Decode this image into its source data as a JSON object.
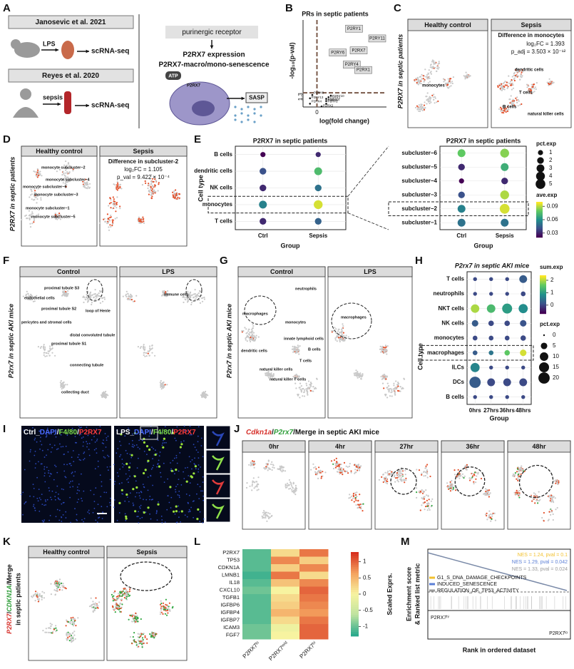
{
  "A": {
    "letter": "A",
    "study1": "Janosevic et al. 2021",
    "study2": "Reyes et al. 2020",
    "treat1": "LPS",
    "treat2": "sepsis",
    "out1": "scRNA-seq",
    "out2": "scRNA-seq",
    "receptor": "purinergic receptor",
    "line1": "P2RX7 expression",
    "line2": "P2RX7-macro/mono-senescence",
    "atp": "ATP",
    "cell": "P2RX7",
    "sasp": "SASP"
  },
  "B": {
    "letter": "B",
    "title": "PRs in septic patients",
    "ylabel": "-log₁₀(p-val)",
    "xlabel": "log(fold change)",
    "xlim": [
      -0.6,
      3
    ],
    "ylim": [
      0,
      8
    ],
    "xticks": [
      0
    ],
    "yticks": [
      1.3
    ],
    "points": [
      {
        "label": "P2RY1",
        "x": 1.6,
        "y": 7.2
      },
      {
        "label": "P2RY11",
        "x": 2.6,
        "y": 6.3
      },
      {
        "label": "P2RY6",
        "x": 0.9,
        "y": 5.0
      },
      {
        "label": "P2RX7",
        "x": 1.8,
        "y": 5.2
      },
      {
        "label": "P2RY4",
        "x": 1.5,
        "y": 3.9
      },
      {
        "label": "P2RX1",
        "x": 2.0,
        "y": 3.4
      },
      {
        "label": "P2RY8",
        "x": -0.2,
        "y": 1.1
      },
      {
        "label": "P2RY13",
        "x": -0.3,
        "y": 0.8
      },
      {
        "label": "P2RX3",
        "x": 0.5,
        "y": 0.9
      },
      {
        "label": "P2RX4",
        "x": -0.3,
        "y": 0.3
      },
      {
        "label": "P2RX5",
        "x": 0.4,
        "y": 0.55
      },
      {
        "label": "P2RY14",
        "x": 0.4,
        "y": 0.75
      },
      {
        "label": "P2RY2",
        "x": 0.4,
        "y": 0.3
      },
      {
        "label": "P2RX2",
        "x": 0.2,
        "y": 0.05
      },
      {
        "label": "P2RY10",
        "x": 0.6,
        "y": 1.05
      }
    ]
  },
  "C": {
    "letter": "C",
    "ylabel": "P2RX7 in septic patients",
    "left": "Healthy control",
    "right": "Sepsis",
    "diff": "Difference in monocytes",
    "fc": "log₂FC = 1.393",
    "p": "p_adj = 3.503 × 10⁻¹²",
    "clusters": [
      "monocytes",
      "dendritic cells",
      "T cells",
      "B cells",
      "natural killer cells"
    ]
  },
  "D": {
    "letter": "D",
    "ylabel": "P2RX7 in septic patients",
    "left": "Healthy control",
    "right": "Sepsis",
    "diff": "Difference in subcluster-2",
    "fc": "log₂FC = 1.105",
    "p": "p_val = 9.422 × 10⁻⁴",
    "clusters": [
      "monocyte subcluster−2",
      "monocyte subcluster−4",
      "monocyte subcluster−6",
      "monocyte subcluster−3",
      "monocyte subcluster−1",
      "monocyte subcluster−5"
    ]
  },
  "E": {
    "letter": "E",
    "left": {
      "title": "P2RX7 in septic patients",
      "ylabel": "Cell type",
      "xlabel": "Group",
      "groups": [
        "Ctrl",
        "Sepsis"
      ],
      "rows": [
        "B cells",
        "dendritic cells",
        "NK cells",
        "monocytes",
        "T cells"
      ],
      "pct": [
        [
          1,
          1
        ],
        [
          2,
          3
        ],
        [
          2,
          2
        ],
        [
          3,
          4
        ],
        [
          2,
          2
        ]
      ],
      "ave": [
        [
          0.02,
          0.03
        ],
        [
          0.04,
          0.075
        ],
        [
          0.03,
          0.05
        ],
        [
          0.055,
          0.095
        ],
        [
          0.03,
          0.045
        ]
      ]
    },
    "right": {
      "title": "P2RX7 in septic patients",
      "xlabel": "Group",
      "groups": [
        "Ctrl",
        "Sepsis"
      ],
      "rows": [
        "subcluster−6",
        "subcluster−5",
        "subcluster−4",
        "subcluster−3",
        "subcluster−2",
        "subcluster−1"
      ],
      "pct": [
        [
          3,
          4
        ],
        [
          2,
          3
        ],
        [
          1,
          2
        ],
        [
          2,
          4
        ],
        [
          3,
          5
        ],
        [
          3,
          3
        ]
      ],
      "ave": [
        [
          0.08,
          0.085
        ],
        [
          0.03,
          0.07
        ],
        [
          0.02,
          0.03
        ],
        [
          0.04,
          0.09
        ],
        [
          0.055,
          0.095
        ],
        [
          0.05,
          0.05
        ]
      ]
    },
    "pct_title": "pct.exp",
    "pct_ticks": [
      1,
      2,
      3,
      4,
      5
    ],
    "ave_title": "ave.exp",
    "ave_ticks": [
      0.09,
      0.06,
      0.03
    ],
    "ave_lim": [
      0.02,
      0.1
    ]
  },
  "F": {
    "letter": "F",
    "ylabel": "P2rx7 in septic AKI mice",
    "left": "Control",
    "right": "LPS",
    "clusters": [
      "proximal tubule S3",
      "immune cells",
      "endothelial cells",
      "proximal tubule S2",
      "loop of Henle",
      "pericytes and stromal cells",
      "distal convoluted tubule",
      "proximal tubule S1",
      "connecting tubule",
      "collecting duct"
    ]
  },
  "G": {
    "letter": "G",
    "ylabel": "P2rx7 in septic AKI mice",
    "left": "Control",
    "right": "LPS",
    "clusters": [
      "neutrophils",
      "macrophages",
      "monocytes",
      "innate lymphoid cells",
      "B cells",
      "T cells",
      "dendritic cells",
      "natural killer cells",
      "natural killer T cells"
    ]
  },
  "H": {
    "letter": "H",
    "title": "P2rx7 in septic AKI mice",
    "ylabel": "Cell type",
    "xlabel": "Group",
    "groups": [
      "0hrs",
      "27hrs",
      "36hrs",
      "48hrs"
    ],
    "rows": [
      "T cells",
      "neutrophils",
      "NKT cells",
      "NK cells",
      "monocytes",
      "macrophages",
      "ILCs",
      "DCs",
      "B cells"
    ],
    "pct": [
      [
        1,
        1,
        1,
        8
      ],
      [
        1,
        1,
        1,
        2
      ],
      [
        10,
        10,
        15,
        12
      ],
      [
        5,
        3,
        3,
        5
      ],
      [
        2,
        2,
        2,
        3
      ],
      [
        2,
        2,
        3,
        5
      ],
      [
        12,
        1,
        1,
        1
      ],
      [
        20,
        8,
        8,
        8
      ],
      [
        1,
        1,
        1,
        1
      ]
    ],
    "sum": [
      [
        0,
        0,
        0,
        0.2
      ],
      [
        0,
        0,
        0,
        0
      ],
      [
        2.0,
        1.4,
        1.0,
        0.8
      ],
      [
        0.2,
        0,
        0,
        0.1
      ],
      [
        0,
        0,
        0,
        0
      ],
      [
        0.2,
        0.5,
        1.6,
        2.2
      ],
      [
        0.7,
        0,
        0,
        0
      ],
      [
        0.2,
        0,
        0,
        0
      ],
      [
        0,
        0,
        0,
        0
      ]
    ],
    "sum_title": "sum.exp",
    "sum_ticks": [
      2,
      1,
      0
    ],
    "sum_lim": [
      -0.7,
      2.4
    ],
    "pct_title": "pct.exp",
    "pct_ticks": [
      0,
      5,
      10,
      15,
      20
    ]
  },
  "I": {
    "letter": "I",
    "left": [
      "Ctrl_",
      "DAPI",
      "/",
      "F4/80",
      "/",
      "P2RX7"
    ],
    "right": [
      "LPS_",
      "DAPI",
      "/",
      "F4/80",
      "/",
      "P2RX7"
    ]
  },
  "J": {
    "letter": "J",
    "title": [
      "Cdkn1a",
      "/",
      "P2rx7",
      "/Merge in septic AKI mice"
    ],
    "times": [
      "0hr",
      "4hr",
      "27hr",
      "36hr",
      "48hr"
    ]
  },
  "K": {
    "letter": "K",
    "ylabel": [
      "P2RX7",
      "/",
      "CDKN1A",
      "/Merge"
    ],
    "ylabel2": "in septic patients",
    "left": "Healthy control",
    "right": "Sepsis"
  },
  "L": {
    "letter": "L",
    "genes": [
      "P2RX7",
      "TP53",
      "CDKN1A",
      "LMNB1",
      "IL18",
      "CXCL10",
      "TGFB1",
      "IGFBP6",
      "IGFBP4",
      "IGFBP7",
      "ICAM3",
      "FGF7"
    ],
    "columns": [
      "P2RX7ˡᵒ",
      "P2RX7ᵐⁱᵈ",
      "P2RX7ʰⁱ"
    ],
    "values": [
      [
        -1.1,
        0.2,
        0.9
      ],
      [
        -1.1,
        0.8,
        0.3
      ],
      [
        -1.1,
        0.3,
        0.8
      ],
      [
        -1.2,
        0.9,
        0.2
      ],
      [
        -1.1,
        0.4,
        0.8
      ],
      [
        -1.0,
        0.0,
        1.0
      ],
      [
        -1.1,
        0.2,
        0.9
      ],
      [
        -1.1,
        0.3,
        0.8
      ],
      [
        -1.1,
        0.5,
        0.7
      ],
      [
        -1.1,
        0.2,
        0.9
      ],
      [
        -1.0,
        -0.1,
        1.0
      ],
      [
        -1.0,
        0.0,
        1.0
      ]
    ],
    "scale_title": "Scaled Exprs.",
    "scale_lim": [
      -1.3,
      1.3
    ],
    "scale_ticks": [
      1,
      0.5,
      0,
      -0.5,
      -1
    ]
  },
  "M": {
    "letter": "M",
    "ylabel": [
      "Enrichment score",
      "& Ranked list metric"
    ],
    "xlabel": "Rank in ordered dataset",
    "nes": [
      "NES = 1.24, pval = 0.1",
      "NES = 1.29, pval = 0.042",
      "NES = 1.33, pval = 0.024"
    ],
    "sets": [
      {
        "name": "G1_S_DNA_DAMAGE_CHECKPOINTS",
        "color": "#f2c12e"
      },
      {
        "name": "INDUCED_SENESCENCE",
        "color": "#5b7fd6"
      },
      {
        "name": "REGULATION_OF_TP53_ACTIVITY",
        "color": "#9a9a9a"
      }
    ],
    "hi": "P2RX7ʰⁱ",
    "lo": "P2RX7ˡᵒ"
  }
}
